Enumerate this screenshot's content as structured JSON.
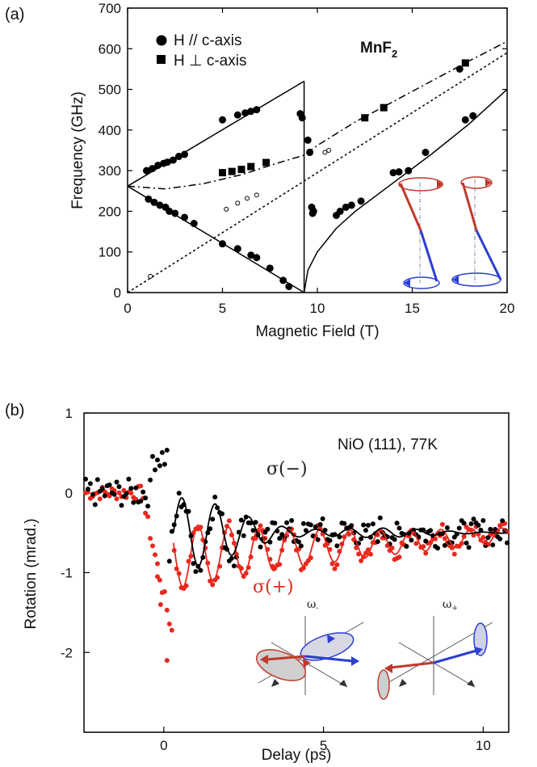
{
  "chart_data": [
    {
      "panel_label": "(a)",
      "type": "line",
      "title": "MnF2",
      "title_base": "MnF",
      "title_sub": "2",
      "xlabel": "Magnetic Field (T)",
      "ylabel": "Frequency (GHz)",
      "xlim": [
        0,
        20
      ],
      "ylim": [
        0,
        700
      ],
      "xticks": [
        0,
        5,
        10,
        15,
        20
      ],
      "yticks": [
        0,
        100,
        200,
        300,
        400,
        500,
        600,
        700
      ],
      "grid": false,
      "legend_placement": "top-left",
      "legend": [
        "H // c-axis",
        "H ⊥ c-axis"
      ],
      "series": [
        {
          "name": "H // c-axis",
          "marker": "circle",
          "points": [
            [
              1.0,
              300
            ],
            [
              1.3,
              305
            ],
            [
              1.6,
              313
            ],
            [
              1.9,
              318
            ],
            [
              2.1,
              321
            ],
            [
              2.4,
              326
            ],
            [
              2.7,
              335
            ],
            [
              3.0,
              340
            ],
            [
              5.0,
              425
            ],
            [
              5.8,
              437
            ],
            [
              6.2,
              442
            ],
            [
              6.5,
              446
            ],
            [
              6.8,
              450
            ],
            [
              9.1,
              440
            ],
            [
              9.2,
              430
            ],
            [
              1.1,
              230
            ],
            [
              1.4,
              222
            ],
            [
              1.7,
              215
            ],
            [
              2.0,
              210
            ],
            [
              2.2,
              200
            ],
            [
              2.5,
              195
            ],
            [
              3.0,
              185
            ],
            [
              3.5,
              170
            ],
            [
              5.0,
              120
            ],
            [
              5.8,
              108
            ],
            [
              6.5,
              92
            ],
            [
              6.8,
              86
            ],
            [
              7.5,
              60
            ],
            [
              8.2,
              30
            ],
            [
              8.5,
              15
            ],
            [
              9.5,
              375
            ],
            [
              9.6,
              345
            ],
            [
              9.7,
              210
            ],
            [
              9.75,
              195
            ],
            [
              9.8,
              200
            ],
            [
              11.0,
              190
            ],
            [
              11.2,
              200
            ],
            [
              11.5,
              210
            ],
            [
              11.8,
              215
            ],
            [
              12.3,
              225
            ],
            [
              14.0,
              295
            ],
            [
              14.3,
              297
            ],
            [
              14.8,
              300
            ],
            [
              15.7,
              345
            ],
            [
              17.5,
              550
            ],
            [
              17.8,
              425
            ],
            [
              18.2,
              435
            ]
          ]
        },
        {
          "name": "H ⊥ c-axis",
          "marker": "square",
          "points": [
            [
              5.0,
              295
            ],
            [
              5.5,
              298
            ],
            [
              6.0,
              303
            ],
            [
              6.5,
              310
            ],
            [
              7.3,
              320
            ],
            [
              12.5,
              430
            ],
            [
              13.5,
              455
            ],
            [
              17.8,
              565
            ]
          ]
        },
        {
          "name": "",
          "marker": "open-circle",
          "points": [
            [
              1.2,
              40
            ],
            [
              5.2,
              205
            ],
            [
              5.8,
              220
            ],
            [
              6.3,
              232
            ],
            [
              6.8,
              240
            ],
            [
              10.4,
              345
            ],
            [
              10.6,
              350
            ]
          ]
        }
      ],
      "curves": [
        {
          "style": "solid",
          "points": [
            [
              0,
              262
            ],
            [
              9.3,
              520
            ]
          ]
        },
        {
          "style": "solid",
          "points": [
            [
              0,
              262
            ],
            [
              9.3,
              0
            ]
          ]
        },
        {
          "style": "solid",
          "points": [
            [
              9.3,
              520
            ],
            [
              9.3,
              0
            ]
          ]
        },
        {
          "style": "solid",
          "points": [
            [
              9.3,
              0
            ],
            [
              9.5,
              55
            ],
            [
              10,
              100
            ],
            [
              11,
              158
            ],
            [
              12,
              200
            ],
            [
              14,
              270
            ],
            [
              16,
              340
            ],
            [
              18,
              415
            ],
            [
              20,
              500
            ]
          ]
        },
        {
          "style": "dash-dot",
          "points": [
            [
              0,
              262
            ],
            [
              2,
              255
            ],
            [
              4,
              268
            ],
            [
              6,
              290
            ],
            [
              8,
              320
            ],
            [
              9.3,
              338
            ],
            [
              10,
              362
            ],
            [
              12,
              420
            ],
            [
              14,
              470
            ],
            [
              16,
              520
            ],
            [
              18,
              570
            ],
            [
              20,
              618
            ]
          ]
        },
        {
          "style": "dotted",
          "points": [
            [
              0,
              0
            ],
            [
              20,
              590
            ]
          ]
        }
      ]
    },
    {
      "panel_label": "(b)",
      "type": "scatter",
      "title": "NiO (111), 77K",
      "xlabel": "Delay (ps)",
      "ylabel": "Rotation (mrad.)",
      "xlim": [
        -2.5,
        10.8
      ],
      "ylim": [
        -3.0,
        1.0
      ],
      "xticks": [
        0,
        5,
        10
      ],
      "yticks": [
        1,
        0,
        -1,
        -2
      ],
      "grid": false,
      "legend_placement": "top-right",
      "series": [
        {
          "name": "σ(−)",
          "color": "#000000"
        },
        {
          "name": "σ(+)",
          "color": "#e8281e"
        }
      ]
    }
  ],
  "insets": {
    "panel_b_left": "ω-",
    "panel_b_right": "ω+",
    "left_sub": "-",
    "right_sub": "+"
  },
  "colors": {
    "red": "#c0392b",
    "blue": "#2b3fd1",
    "fit_red": "#e8281e"
  }
}
